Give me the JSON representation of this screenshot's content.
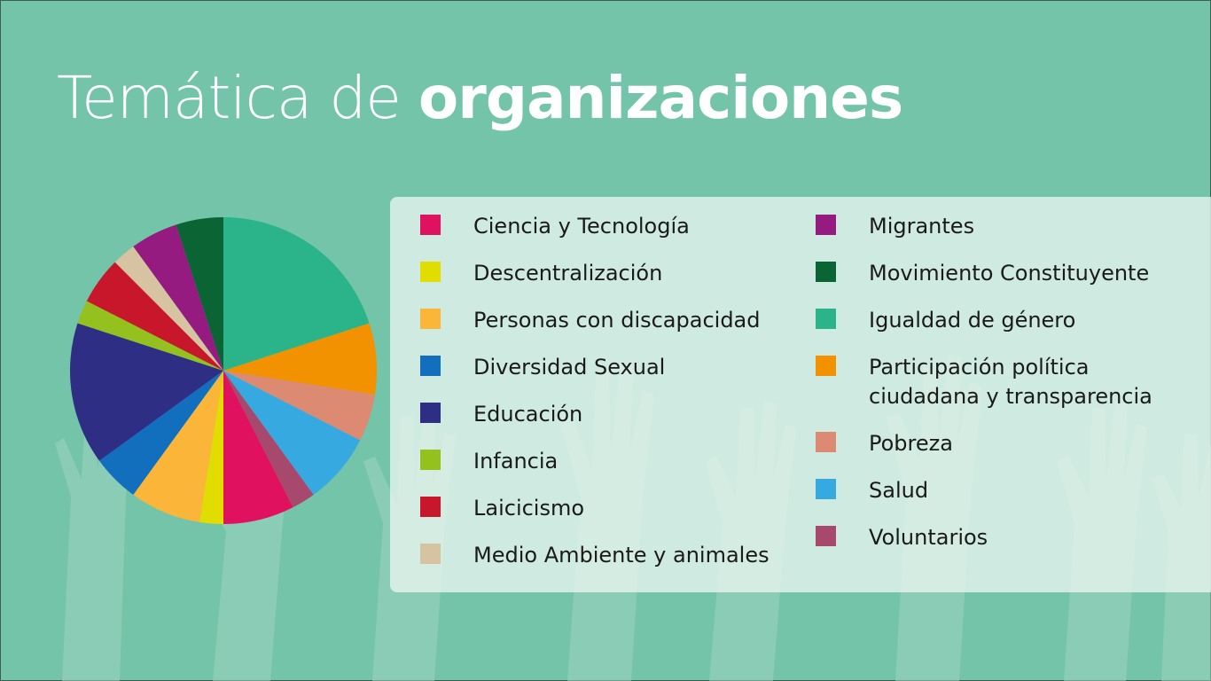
{
  "title": {
    "regular": "Temática de ",
    "bold": "organizaciones"
  },
  "colors": {
    "background": "#73c4a8",
    "panel": "#e6f4ee"
  },
  "chart_data": {
    "type": "pie",
    "start_angle_deg": 0,
    "direction": "clockwise",
    "slices": [
      {
        "label": "Igualdad de género",
        "value": 20,
        "color": "#2bb38a"
      },
      {
        "label": "Participación política ciudadana y transparencia",
        "value": 7.5,
        "color": "#f39200"
      },
      {
        "label": "Pobreza",
        "value": 5,
        "color": "#dc8a71"
      },
      {
        "label": "Salud",
        "value": 7.5,
        "color": "#36a9e1"
      },
      {
        "label": "Voluntarios",
        "value": 2.5,
        "color": "#a6496d"
      },
      {
        "label": "Ciencia y Tecnología",
        "value": 7.5,
        "color": "#e0115f"
      },
      {
        "label": "Descentralización",
        "value": 2.5,
        "color": "#e1dd00"
      },
      {
        "label": "Personas con discapacidad",
        "value": 7.5,
        "color": "#fbb63a"
      },
      {
        "label": "Diversidad Sexual",
        "value": 5,
        "color": "#116fbe"
      },
      {
        "label": "Educación",
        "value": 15,
        "color": "#2e2e84"
      },
      {
        "label": "Infancia",
        "value": 2.5,
        "color": "#95c11f"
      },
      {
        "label": "Laicicismo",
        "value": 5,
        "color": "#c8172b"
      },
      {
        "label": "Medio Ambiente y animales",
        "value": 2.5,
        "color": "#d6c3a2"
      },
      {
        "label": "Migrantes",
        "value": 5,
        "color": "#951b81"
      },
      {
        "label": "Movimiento Constituyente",
        "value": 5,
        "color": "#0b6434"
      }
    ]
  },
  "legend": {
    "col1": [
      {
        "label": "Ciencia y Tecnología",
        "color": "#e0115f"
      },
      {
        "label": "Descentralización",
        "color": "#e1dd00"
      },
      {
        "label": "Personas con discapacidad",
        "color": "#fbb63a"
      },
      {
        "label": "Diversidad Sexual",
        "color": "#116fbe"
      },
      {
        "label": "Educación",
        "color": "#2e2e84"
      },
      {
        "label": "Infancia",
        "color": "#95c11f"
      },
      {
        "label": "Laicicismo",
        "color": "#c8172b"
      },
      {
        "label": "Medio Ambiente y animales",
        "color": "#d6c3a2"
      }
    ],
    "col2": [
      {
        "label": "Migrantes",
        "color": "#951b81"
      },
      {
        "label": "Movimiento Constituyente",
        "color": "#0b6434"
      },
      {
        "label": "Igualdad de género",
        "color": "#2bb38a"
      },
      {
        "label": "Participación política",
        "line2": "ciudadana y transparencia",
        "color": "#f39200"
      },
      {
        "label": "Pobreza",
        "color": "#dc8a71"
      },
      {
        "label": "Salud",
        "color": "#36a9e1"
      },
      {
        "label": "Voluntarios",
        "color": "#a6496d"
      }
    ]
  }
}
